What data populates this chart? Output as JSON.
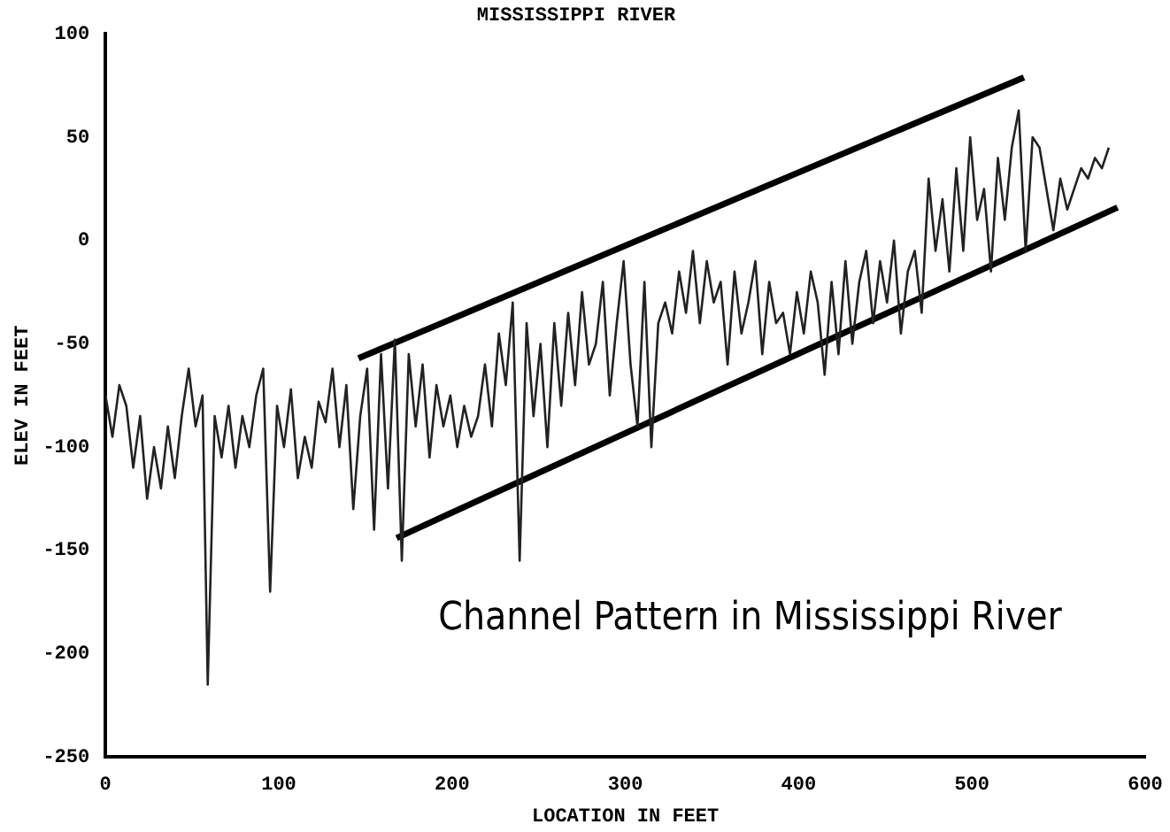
{
  "chart_data": {
    "type": "line",
    "title": "MISSISSIPPI RIVER",
    "xlabel": "LOCATION IN FEET",
    "ylabel": "ELEV IN FEET",
    "annotations": [
      "Channel Pattern in Mississippi River"
    ],
    "xlim": [
      0,
      600
    ],
    "xticks": [
      0,
      100,
      200,
      300,
      400,
      500,
      600
    ],
    "ylim": [
      -250,
      100
    ],
    "yticks": [
      -250,
      -200,
      -150,
      -100,
      -50,
      0,
      50,
      100
    ],
    "grid": false,
    "legend": false,
    "marker": "none",
    "line_style": "solid",
    "series": [
      {
        "color": "#222222",
        "x": [
          0,
          4,
          8,
          12,
          16,
          20,
          24,
          28,
          32,
          36,
          40,
          44,
          48,
          52,
          56,
          59,
          63,
          67,
          71,
          75,
          79,
          83,
          87,
          91,
          95,
          99,
          103,
          107,
          111,
          115,
          119,
          123,
          127,
          131,
          135,
          139,
          143,
          147,
          151,
          155,
          159,
          163,
          167,
          171,
          175,
          179,
          183,
          187,
          191,
          195,
          199,
          203,
          207,
          211,
          215,
          219,
          223,
          227,
          231,
          235,
          239,
          243,
          247,
          251,
          255,
          259,
          263,
          267,
          271,
          275,
          279,
          283,
          287,
          291,
          295,
          299,
          303,
          307,
          311,
          315,
          319,
          323,
          327,
          331,
          335,
          339,
          343,
          347,
          351,
          355,
          359,
          363,
          367,
          371,
          375,
          379,
          383,
          387,
          391,
          395,
          399,
          403,
          407,
          411,
          415,
          419,
          423,
          427,
          431,
          435,
          439,
          443,
          447,
          451,
          455,
          459,
          463,
          467,
          471,
          475,
          479,
          483,
          487,
          491,
          495,
          499,
          503,
          507,
          511,
          515,
          519,
          523,
          527,
          531,
          535,
          539,
          543,
          547,
          551,
          555,
          559,
          563,
          567,
          571,
          575,
          579
        ],
        "values": [
          -75,
          -95,
          -70,
          -80,
          -110,
          -85,
          -125,
          -100,
          -120,
          -90,
          -115,
          -85,
          -62,
          -90,
          -75,
          -215,
          -85,
          -105,
          -80,
          -110,
          -85,
          -100,
          -75,
          -62,
          -170,
          -80,
          -100,
          -72,
          -115,
          -95,
          -110,
          -78,
          -88,
          -62,
          -100,
          -70,
          -130,
          -85,
          -62,
          -140,
          -55,
          -120,
          -48,
          -155,
          -55,
          -90,
          -60,
          -105,
          -70,
          -90,
          -75,
          -100,
          -80,
          -95,
          -85,
          -60,
          -90,
          -45,
          -70,
          -30,
          -155,
          -40,
          -85,
          -50,
          -100,
          -40,
          -80,
          -35,
          -70,
          -25,
          -60,
          -50,
          -20,
          -75,
          -40,
          -10,
          -60,
          -90,
          -20,
          -100,
          -40,
          -30,
          -45,
          -15,
          -35,
          -5,
          -40,
          -10,
          -30,
          -20,
          -60,
          -15,
          -45,
          -30,
          -10,
          -55,
          -20,
          -40,
          -35,
          -55,
          -25,
          -45,
          -15,
          -30,
          -65,
          -20,
          -55,
          -10,
          -50,
          -20,
          -5,
          -40,
          -10,
          -30,
          0,
          -45,
          -15,
          -5,
          -35,
          30,
          -5,
          20,
          -15,
          35,
          -5,
          50,
          10,
          25,
          -15,
          40,
          10,
          45,
          63,
          -5,
          50,
          45,
          25,
          5,
          30,
          15,
          25,
          35,
          30,
          40,
          35,
          45
        ]
      },
      {
        "color": "#000000",
        "x": [
          146,
          530
        ],
        "values": [
          -57,
          79
        ]
      },
      {
        "color": "#000000",
        "x": [
          168,
          584
        ],
        "values": [
          -144,
          16
        ]
      }
    ]
  }
}
